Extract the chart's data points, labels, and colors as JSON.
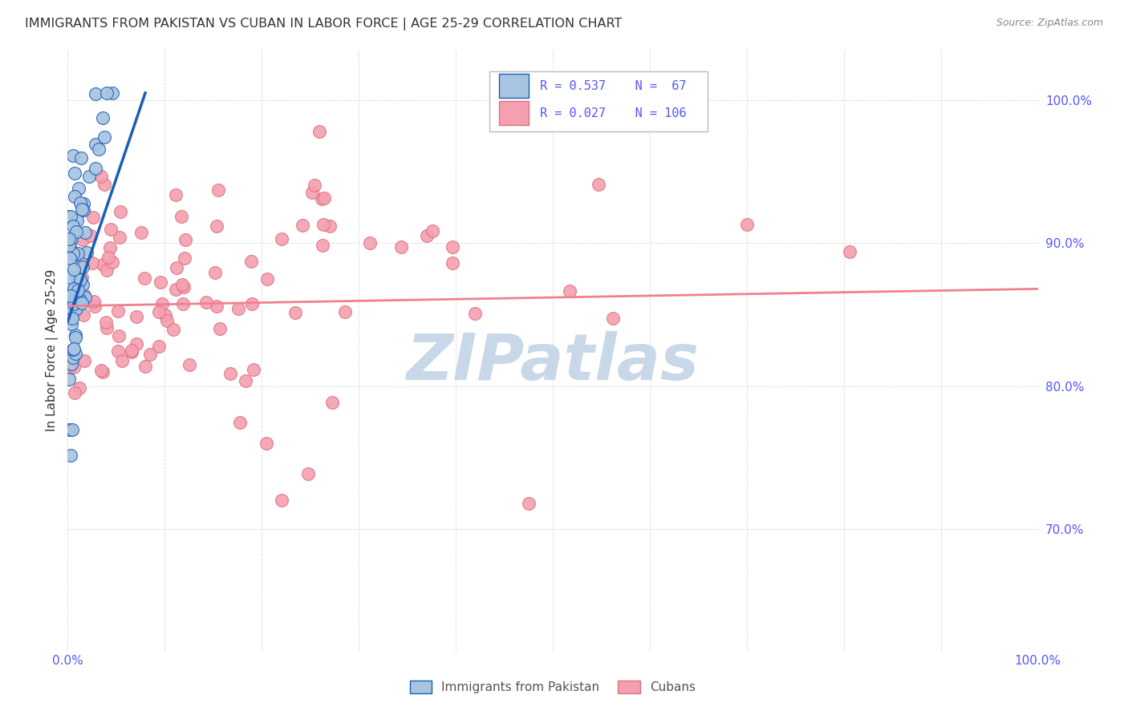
{
  "title": "IMMIGRANTS FROM PAKISTAN VS CUBAN IN LABOR FORCE | AGE 25-29 CORRELATION CHART",
  "source": "Source: ZipAtlas.com",
  "ylabel": "In Labor Force | Age 25-29",
  "ytick_labels": [
    "70.0%",
    "80.0%",
    "90.0%",
    "100.0%"
  ],
  "ytick_values": [
    0.7,
    0.8,
    0.9,
    1.0
  ],
  "xlim": [
    0.0,
    1.0
  ],
  "ylim": [
    0.615,
    1.035
  ],
  "pakistan_color": "#a8c4e0",
  "cuban_color": "#f4a0b0",
  "pakistan_line_color": "#1a5eb8",
  "cuban_line_color": "#f08090",
  "background_color": "#ffffff",
  "watermark_color": "#c8d8e8",
  "grid_color": "#d8d8d8",
  "title_color": "#333333",
  "tick_color": "#5555ff",
  "legend_r1": "R = 0.537",
  "legend_n1": "N =  67",
  "legend_r2": "R = 0.027",
  "legend_n2": "N = 106",
  "pak_trend_x": [
    0.0,
    0.08
  ],
  "pak_trend_y": [
    0.845,
    1.005
  ],
  "cub_trend_x": [
    0.0,
    1.0
  ],
  "cub_trend_y": [
    0.856,
    0.868
  ]
}
